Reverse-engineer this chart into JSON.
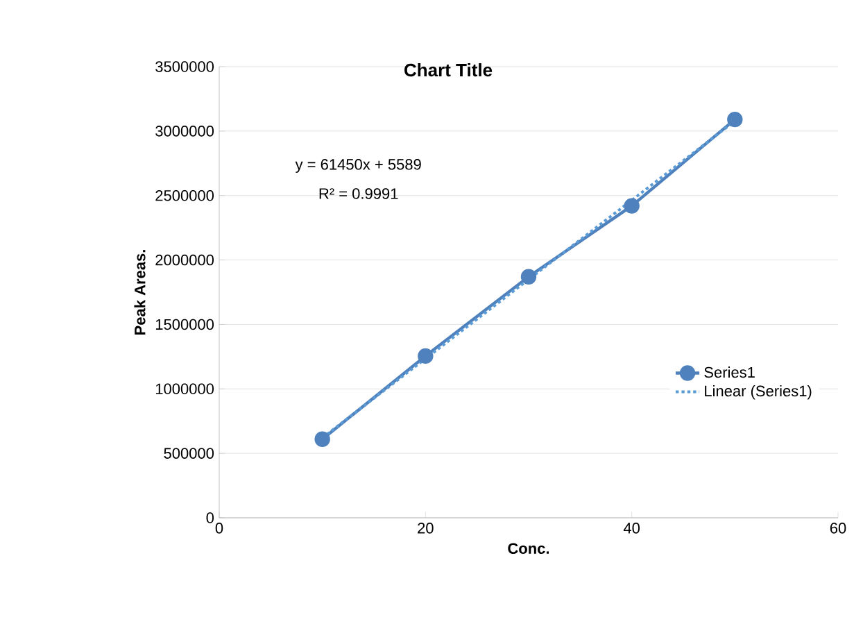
{
  "chart_data": {
    "type": "line",
    "title": "Chart Title",
    "xlabel": "Conc.",
    "ylabel": "Peak Areas.",
    "xlim": [
      0,
      60
    ],
    "xticks": [
      0,
      20,
      40,
      60
    ],
    "ylim": [
      0,
      3500000
    ],
    "yticks": [
      0,
      500000,
      1000000,
      1500000,
      2000000,
      2500000,
      3000000,
      3500000
    ],
    "grid": "y",
    "legend": "right",
    "annotations": [
      "y = 61450x + 5589",
      "R² = 0.9991"
    ],
    "series": [
      {
        "name": "Series1",
        "color": "#4f81bd",
        "x": [
          10,
          20,
          30,
          40,
          50
        ],
        "values": [
          610000,
          1255000,
          1870000,
          2420000,
          3090000
        ],
        "marker": "circle",
        "line_style": "solid"
      },
      {
        "name": "Linear (Series1)",
        "type": "line",
        "color": "#5b9bd5",
        "x": [
          10,
          50
        ],
        "values": [
          620089,
          3078089
        ],
        "marker": "none",
        "line_style": "dotted"
      }
    ]
  }
}
